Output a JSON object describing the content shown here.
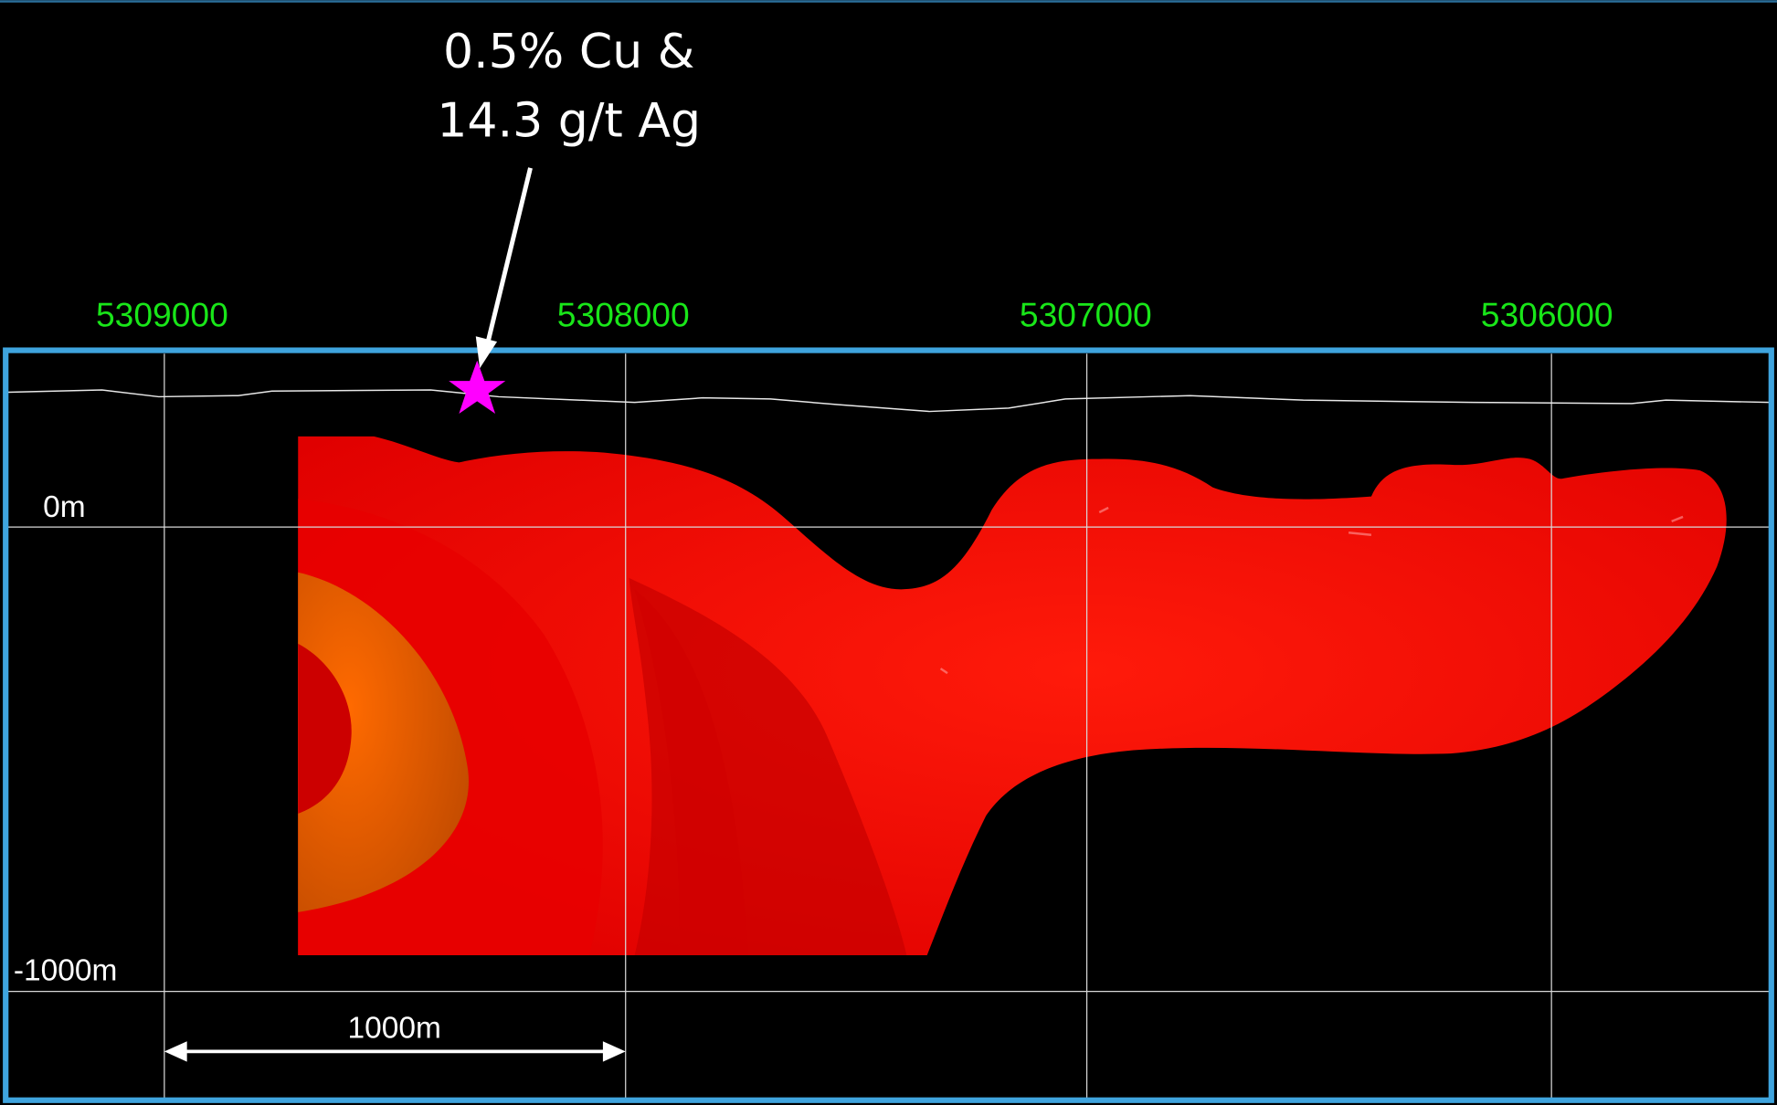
{
  "annotation": {
    "lines": [
      "0.5% Cu &",
      "14.3 g/t Ag"
    ]
  },
  "northings": [
    "5309000",
    "5308000",
    "5307000",
    "5306000"
  ],
  "elevations": [
    "0m",
    "-1000m"
  ],
  "scale_bar": {
    "label": "1000m"
  }
}
